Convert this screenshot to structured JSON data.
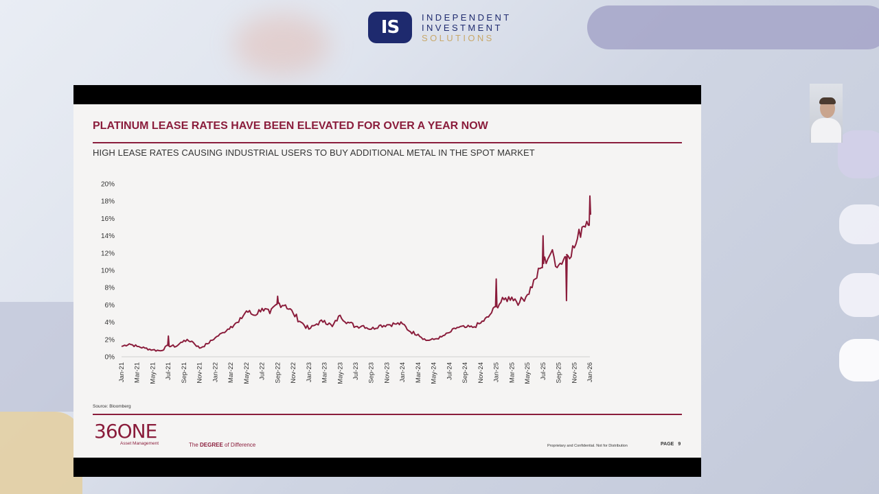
{
  "header": {
    "logo_mark": "IS",
    "logo_lines": [
      "INDEPENDENT",
      "INVESTMENT",
      "SOLUTIONS"
    ]
  },
  "slide": {
    "title": "PLATINUM LEASE RATES HAVE BEEN ELEVATED FOR OVER A YEAR NOW",
    "subtitle": "HIGH LEASE RATES CAUSING INDUSTRIAL USERS TO BUY ADDITIONAL METAL IN THE SPOT MARKET",
    "source": "Source: Bloomberg",
    "brand_name": "36ONE",
    "brand_sub": "Asset Management",
    "tagline_pre": "The ",
    "tagline_bold": "DEGREE",
    "tagline_post": " of Difference",
    "confidential": "Proprietary and Confidential. Not for Distribution",
    "page_label": "PAGE",
    "page_number": "9"
  },
  "colors": {
    "accent": "#8a1c3b",
    "series": "#8a1c3b",
    "logo_navy": "#1e2a6e",
    "logo_gold": "#c8a86a"
  },
  "chart_data": {
    "type": "line",
    "title": "",
    "xlabel": "",
    "ylabel": "",
    "ylim": [
      0,
      20
    ],
    "y_ticks": [
      "0%",
      "2%",
      "4%",
      "6%",
      "8%",
      "10%",
      "12%",
      "14%",
      "16%",
      "18%",
      "20%"
    ],
    "x_ticks": [
      "Jan-21",
      "Mar-21",
      "May-21",
      "Jul-21",
      "Sep-21",
      "Nov-21",
      "Jan-22",
      "Mar-22",
      "May-22",
      "Jul-22",
      "Sep-22",
      "Nov-22",
      "Jan-23",
      "Mar-23",
      "May-23",
      "Jul-23",
      "Sep-23",
      "Nov-23",
      "Jan-24",
      "Mar-24",
      "May-24",
      "Jul-24",
      "Sep-24",
      "Nov-24",
      "Jan-25",
      "Mar-25",
      "May-25",
      "Jul-25",
      "Sep-25",
      "Nov-25",
      "Jan-26"
    ],
    "grid": false,
    "legend": "none",
    "series": [
      {
        "x": [
          "Jan-21",
          "Feb-21",
          "Mar-21",
          "Apr-21",
          "May-21",
          "Jun-21",
          "Jul-21",
          "Aug-21",
          "Sep-21",
          "Oct-21",
          "Nov-21",
          "Dec-21",
          "Jan-22",
          "Feb-22",
          "Mar-22",
          "Apr-22",
          "May-22",
          "Jun-22",
          "Jul-22",
          "Aug-22",
          "Sep-22",
          "Oct-22",
          "Nov-22",
          "Dec-22",
          "Jan-23",
          "Feb-23",
          "Mar-23",
          "Apr-23",
          "May-23",
          "Jun-23",
          "Jul-23",
          "Aug-23",
          "Sep-23",
          "Oct-23",
          "Nov-23",
          "Dec-23",
          "Jan-24",
          "Feb-24",
          "Mar-24",
          "Apr-24",
          "May-24",
          "Jun-24",
          "Jul-24",
          "Aug-24",
          "Sep-24",
          "Oct-24",
          "Nov-24",
          "Dec-24",
          "Jan-25",
          "Feb-25",
          "Mar-25",
          "Apr-25",
          "May-25",
          "Jun-25",
          "Jul-25",
          "Aug-25",
          "Sep-25",
          "Oct-25",
          "Nov-25",
          "Dec-25",
          "Jan-26"
        ],
        "values": [
          1.2,
          1.5,
          1.2,
          1.0,
          0.8,
          0.7,
          1.3,
          1.2,
          1.9,
          1.8,
          1.0,
          1.5,
          2.2,
          2.8,
          3.5,
          4.0,
          5.3,
          4.8,
          5.6,
          5.0,
          6.2,
          6.0,
          5.0,
          4.0,
          3.2,
          3.8,
          4.2,
          3.5,
          4.8,
          4.0,
          3.5,
          3.6,
          3.2,
          3.6,
          3.7,
          3.8,
          3.8,
          2.9,
          2.6,
          1.9,
          2.0,
          2.3,
          2.8,
          3.4,
          3.4,
          3.4,
          3.9,
          4.6,
          5.9,
          6.6,
          6.9,
          6.3,
          7.2,
          9.0,
          10.8,
          12.0,
          10.6,
          11.8,
          12.6,
          15.0,
          16.5
        ]
      }
    ],
    "spikes": [
      {
        "x": "Jul-21",
        "value": 2.4
      },
      {
        "x": "Sep-22",
        "value": 7.0
      },
      {
        "x": "Jan-25",
        "value": 9.0
      },
      {
        "x": "Jul-25",
        "value": 14.0
      },
      {
        "x": "Oct-25",
        "value": 6.5
      },
      {
        "x": "Jan-26",
        "value": 18.6
      }
    ]
  }
}
